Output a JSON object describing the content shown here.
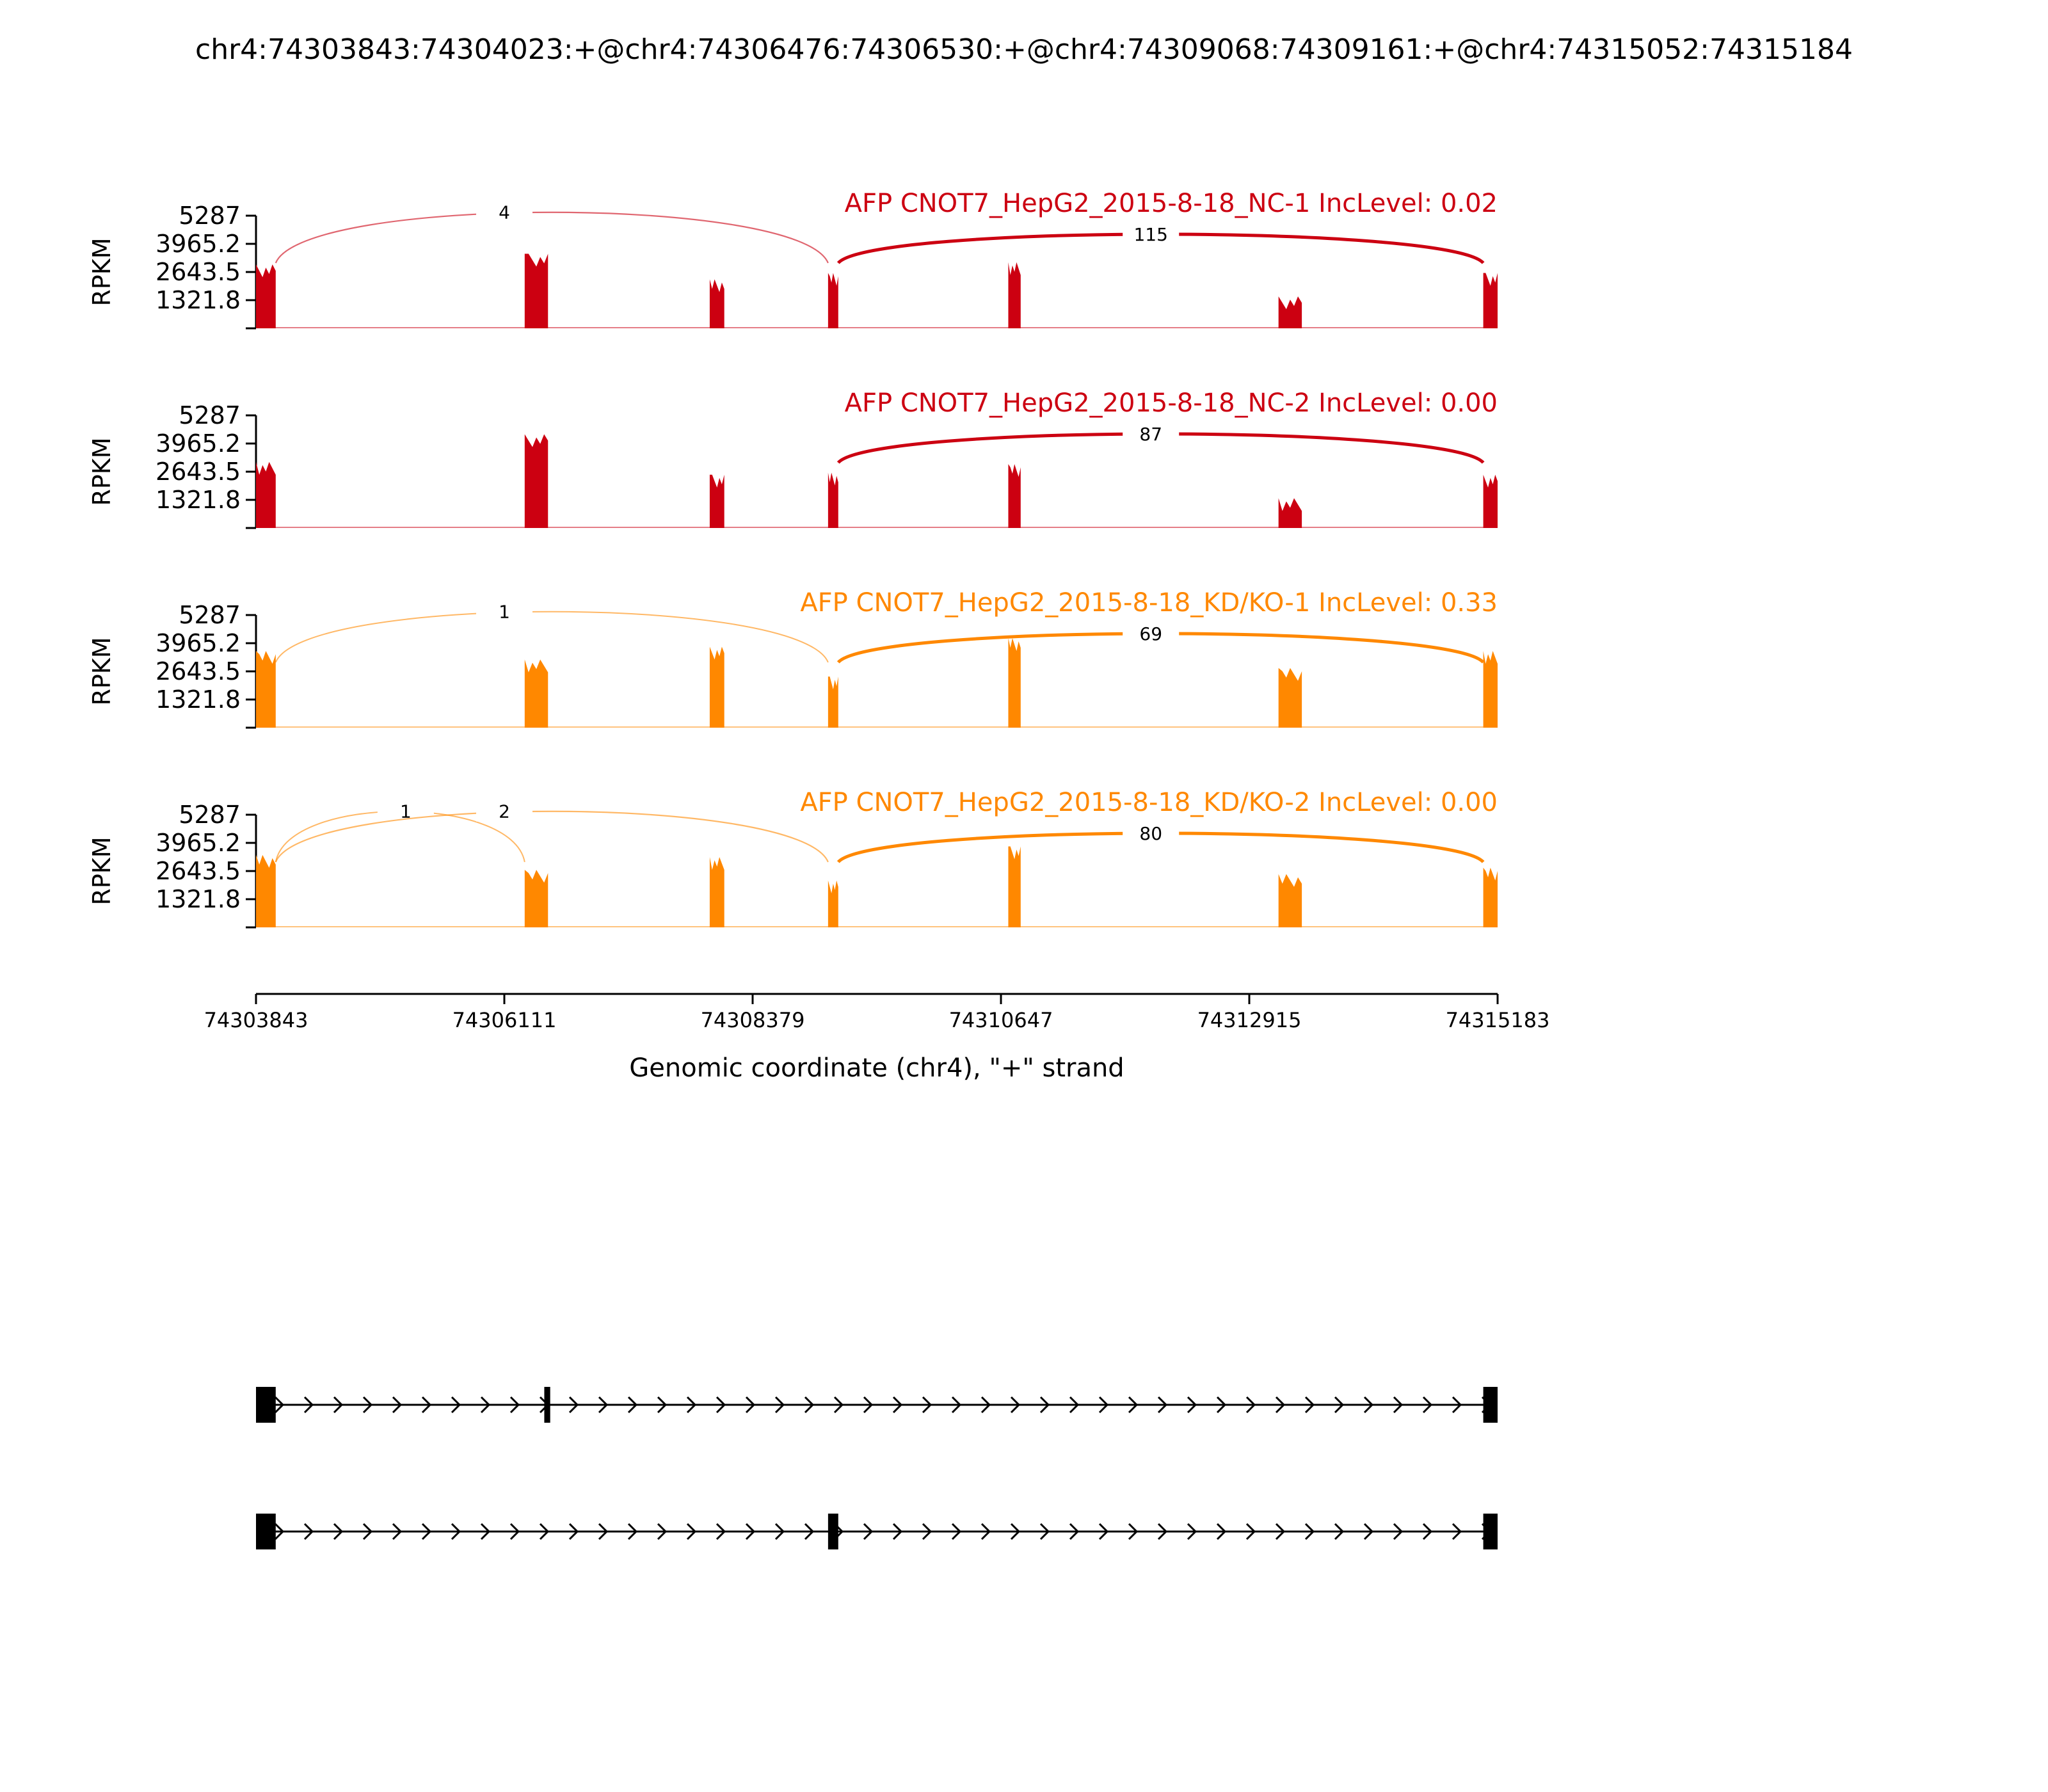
{
  "chart_data": {
    "type": "area",
    "title": "chr4:74303843:74304023:+@chr4:74306476:74306530:+@chr4:74309068:74309161:+@chr4:74315052:74315184",
    "xlabel": "Genomic coordinate (chr4), \"+\" strand",
    "ylabel": "RPKM",
    "xlim": [
      74303843,
      74315183
    ],
    "ylim": [
      0,
      5287
    ],
    "x_ticks": [
      74303843,
      74306111,
      74308379,
      74310647,
      74312915,
      74315183
    ],
    "y_ticks": [
      1321.8,
      2643.5,
      3965.2,
      5287
    ],
    "y_tick_labels": [
      "1321.8",
      "2643.5",
      "3965.2",
      "5287"
    ],
    "x_tick_labels": [
      "74303843",
      "74306111",
      "74308379",
      "74310647",
      "74312915",
      "74315183"
    ],
    "tracks": [
      {
        "name": "AFP CNOT7_HepG2_2015-8-18_NC-1 IncLevel: 0.02",
        "color": "#cc0011",
        "blocks": [
          {
            "start": 74303843,
            "end": 74304023,
            "level": 3000
          },
          {
            "start": 74306297,
            "end": 74306510,
            "level": 3500
          },
          {
            "start": 74307987,
            "end": 74308120,
            "level": 2300
          },
          {
            "start": 74309068,
            "end": 74309161,
            "level": 2600
          },
          {
            "start": 74310714,
            "end": 74310827,
            "level": 3100
          },
          {
            "start": 74313182,
            "end": 74313395,
            "level": 1500
          },
          {
            "start": 74315052,
            "end": 74315183,
            "level": 2600
          }
        ],
        "junctions": [
          {
            "from": 74304023,
            "to": 74309068,
            "count": "4",
            "side": "top",
            "weight": 0.3,
            "label_x": 74306111
          },
          {
            "from": 74309161,
            "to": 74315052,
            "count": "115",
            "side": "top",
            "weight": 1.0,
            "label_x": 74312016
          }
        ]
      },
      {
        "name": "AFP CNOT7_HepG2_2015-8-18_NC-2 IncLevel: 0.00",
        "color": "#cc0011",
        "blocks": [
          {
            "start": 74303843,
            "end": 74304023,
            "level": 3100
          },
          {
            "start": 74306297,
            "end": 74306510,
            "level": 4400
          },
          {
            "start": 74307987,
            "end": 74308120,
            "level": 2500
          },
          {
            "start": 74309068,
            "end": 74309161,
            "level": 2600
          },
          {
            "start": 74310714,
            "end": 74310827,
            "level": 3000
          },
          {
            "start": 74313182,
            "end": 74313395,
            "level": 1400
          },
          {
            "start": 74315052,
            "end": 74315183,
            "level": 2500
          }
        ],
        "junctions": [
          {
            "from": 74309161,
            "to": 74315052,
            "count": "87",
            "side": "top",
            "weight": 1.0,
            "label_x": 74312016
          }
        ]
      },
      {
        "name": "AFP CNOT7_HepG2_2015-8-18_KD/KO-1 IncLevel: 0.33",
        "color": "#ff8800",
        "blocks": [
          {
            "start": 74303843,
            "end": 74304023,
            "level": 3600
          },
          {
            "start": 74306297,
            "end": 74306510,
            "level": 3200
          },
          {
            "start": 74307987,
            "end": 74308120,
            "level": 3800
          },
          {
            "start": 74309068,
            "end": 74309161,
            "level": 2400
          },
          {
            "start": 74310714,
            "end": 74310827,
            "level": 4200
          },
          {
            "start": 74313182,
            "end": 74313395,
            "level": 2800
          },
          {
            "start": 74315052,
            "end": 74315183,
            "level": 3600
          }
        ],
        "junctions": [
          {
            "from": 74304023,
            "to": 74309068,
            "count": "1",
            "side": "top",
            "weight": 0.25,
            "label_x": 74306111
          },
          {
            "from": 74309161,
            "to": 74315052,
            "count": "69",
            "side": "top",
            "weight": 1.0,
            "label_x": 74312016
          }
        ]
      },
      {
        "name": "AFP CNOT7_HepG2_2015-8-18_KD/KO-2 IncLevel: 0.00",
        "color": "#ff8800",
        "blocks": [
          {
            "start": 74303843,
            "end": 74304023,
            "level": 3400
          },
          {
            "start": 74306297,
            "end": 74306510,
            "level": 2700
          },
          {
            "start": 74307987,
            "end": 74308120,
            "level": 3300
          },
          {
            "start": 74309068,
            "end": 74309161,
            "level": 2200
          },
          {
            "start": 74310714,
            "end": 74310827,
            "level": 3800
          },
          {
            "start": 74313182,
            "end": 74313395,
            "level": 2500
          },
          {
            "start": 74315052,
            "end": 74315183,
            "level": 2800
          }
        ],
        "junctions": [
          {
            "from": 74304023,
            "to": 74306297,
            "count": "1",
            "side": "top",
            "weight": 0.25,
            "label_x": 74305210
          },
          {
            "from": 74304023,
            "to": 74309068,
            "count": "2",
            "side": "top",
            "weight": 0.3,
            "label_x": 74306111
          },
          {
            "from": 74309161,
            "to": 74315052,
            "count": "80",
            "side": "top",
            "weight": 1.0,
            "label_x": 74312016
          }
        ]
      }
    ],
    "isoforms": [
      {
        "exons": [
          {
            "start": 74303843,
            "end": 74304023
          },
          {
            "start": 74306476,
            "end": 74306530
          },
          {
            "start": 74315052,
            "end": 74315183
          }
        ]
      },
      {
        "exons": [
          {
            "start": 74303843,
            "end": 74304023
          },
          {
            "start": 74309068,
            "end": 74309161
          },
          {
            "start": 74315052,
            "end": 74315183
          }
        ]
      }
    ]
  }
}
